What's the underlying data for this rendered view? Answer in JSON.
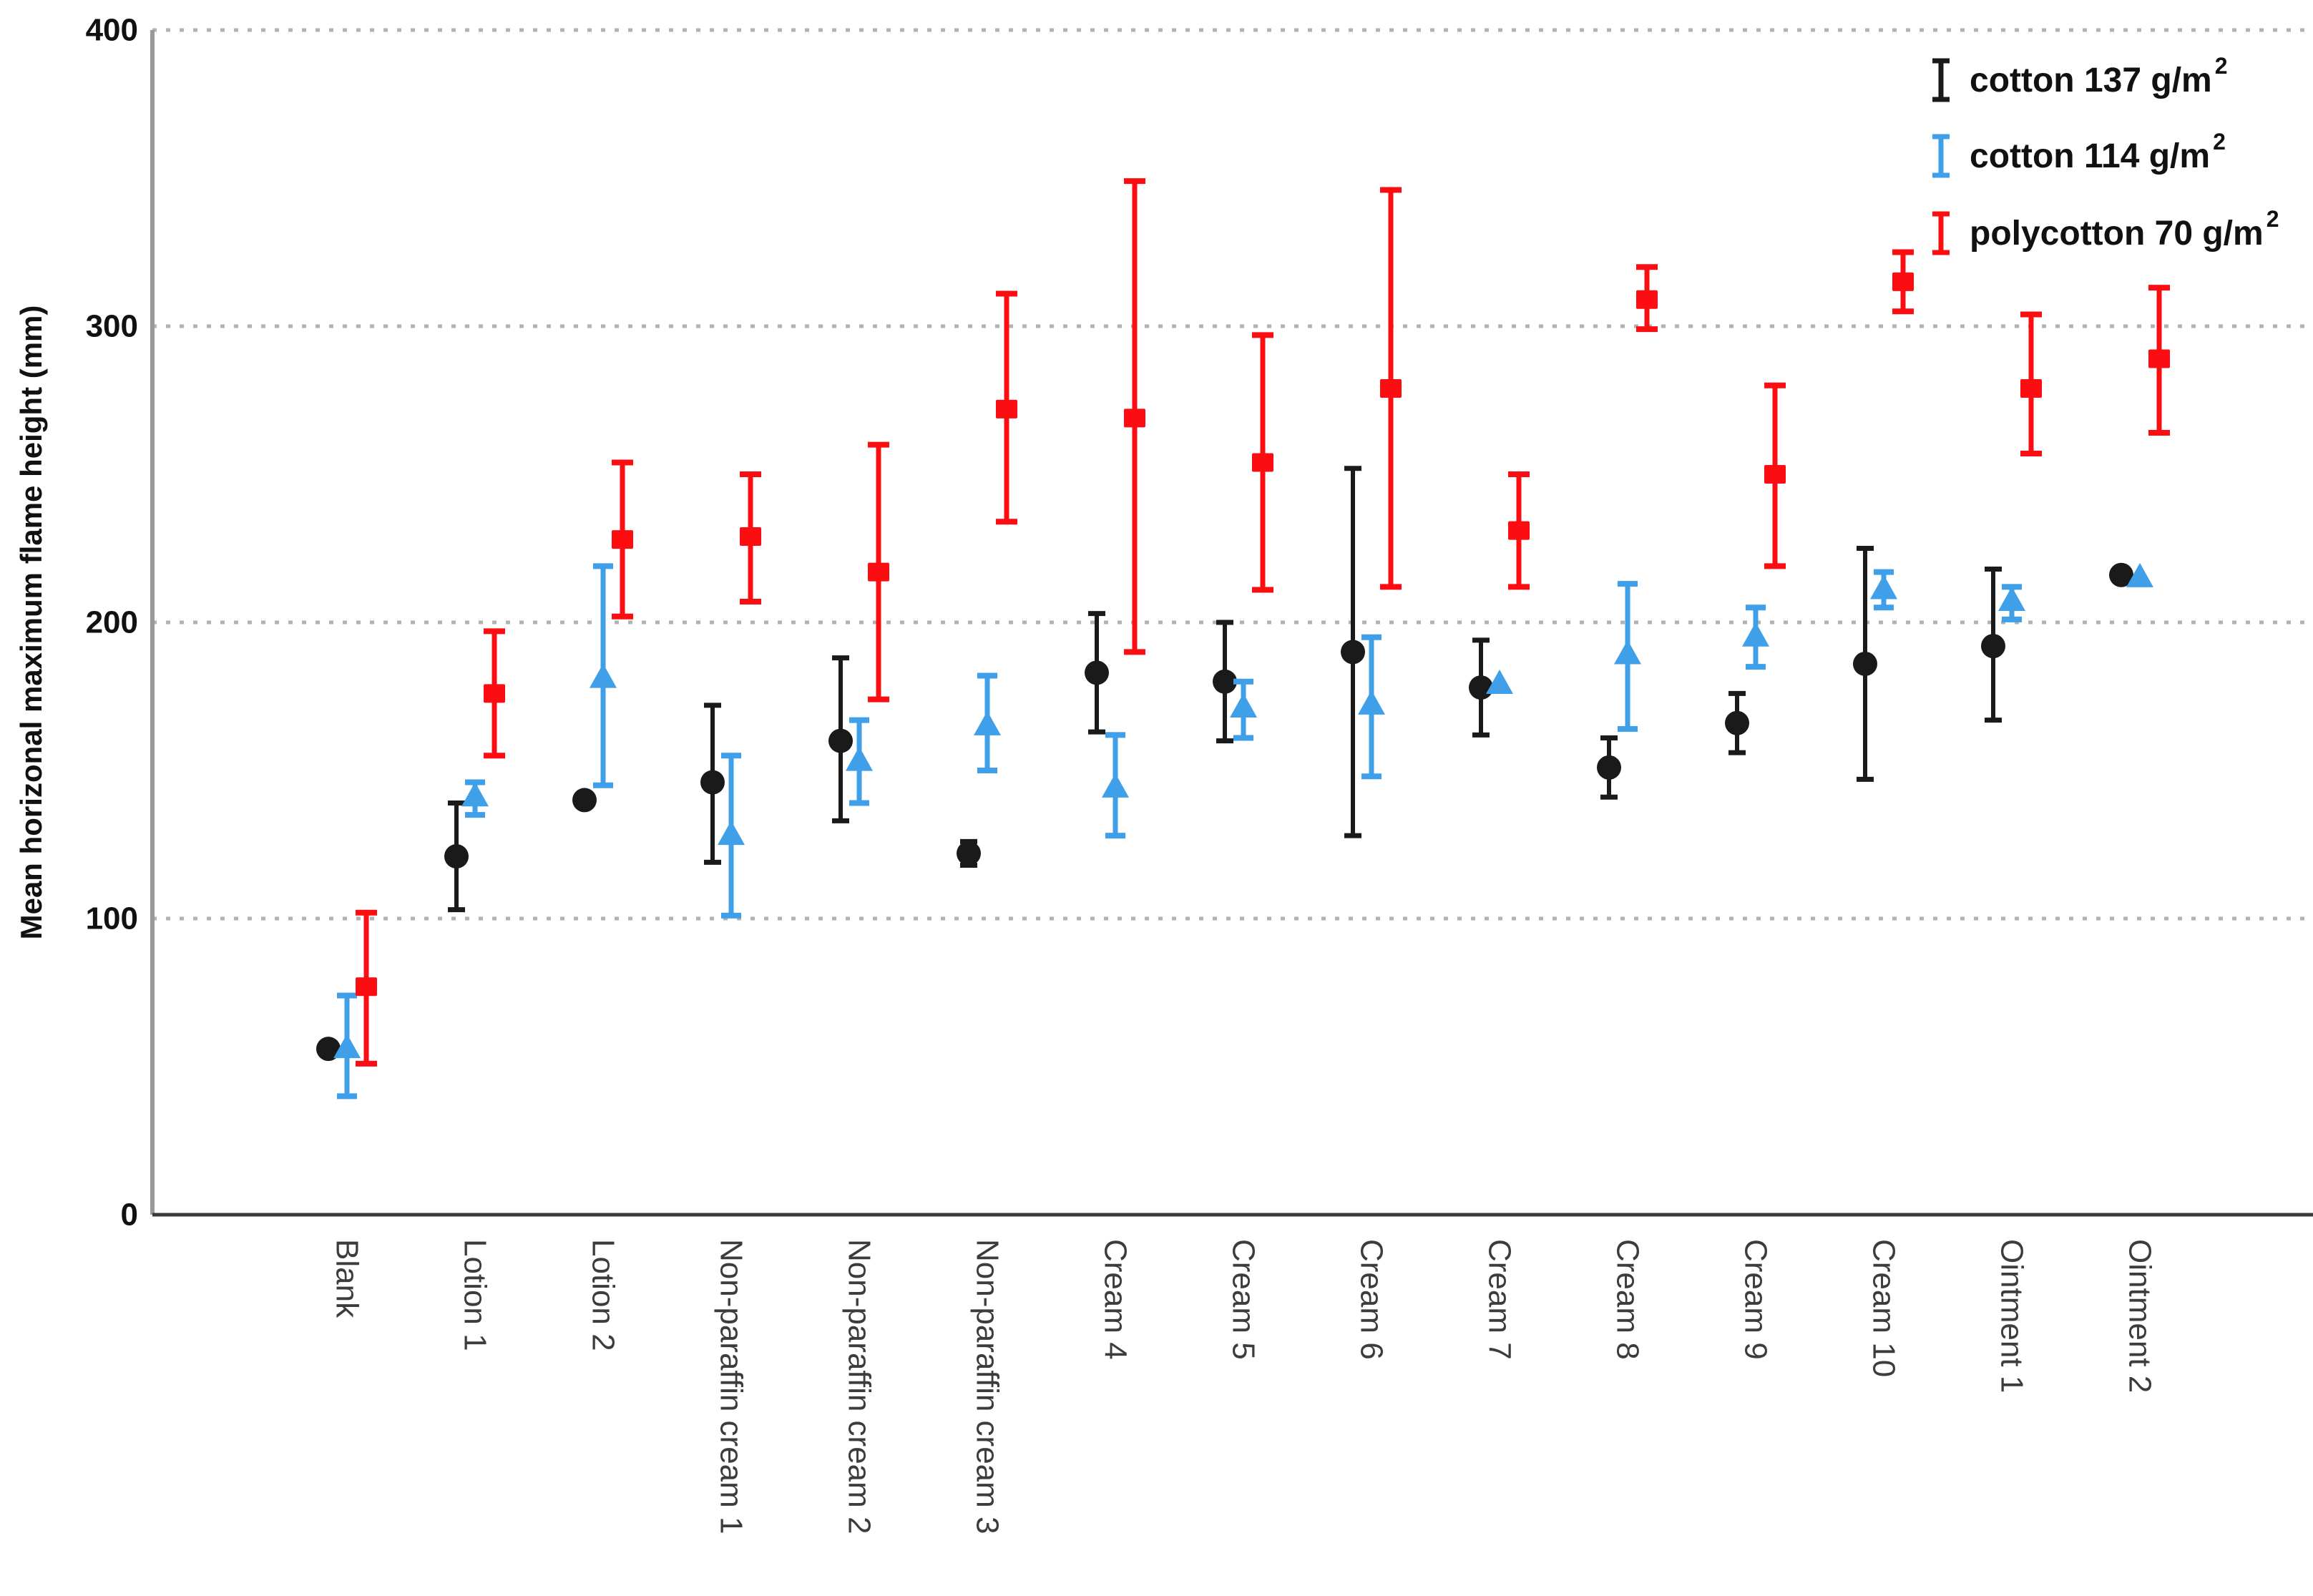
{
  "page": {
    "background": "#ffffff"
  },
  "chart_data": {
    "type": "scatter",
    "title": "",
    "xlabel": "",
    "ylabel": "Mean horizonal maximum flame height (mm)",
    "ylim": [
      0,
      400
    ],
    "yticks": [
      0,
      100,
      200,
      300,
      400
    ],
    "grid": "horizontal-dashed",
    "grid_color": "#b2b2b2",
    "legend_position": "top-right",
    "error_bars": true,
    "categories": [
      "Blank",
      "Lotion 1",
      "Lotion 2",
      "Non-paraffin cream 1",
      "Non-paraffin cream 2",
      "Non-paraffin cream 3",
      "Cream 4",
      "Cream 5",
      "Cream 6",
      "Cream 7",
      "Cream 8",
      "Cream 9",
      "Cream 10",
      "Ointment 1",
      "Ointment 2"
    ],
    "series": [
      {
        "name": "cotton 137 g/m",
        "name_sup": "2",
        "marker": "circle",
        "color": "#1a1a1a",
        "points": [
          {
            "mean": 56,
            "lo": null,
            "hi": null
          },
          {
            "mean": 121,
            "lo": 103,
            "hi": 139
          },
          {
            "mean": 140,
            "lo": null,
            "hi": null
          },
          {
            "mean": 146,
            "lo": 119,
            "hi": 172
          },
          {
            "mean": 160,
            "lo": 133,
            "hi": 188
          },
          {
            "mean": 122,
            "lo": 118,
            "hi": 126
          },
          {
            "mean": 183,
            "lo": 163,
            "hi": 203
          },
          {
            "mean": 180,
            "lo": 160,
            "hi": 200
          },
          {
            "mean": 190,
            "lo": 128,
            "hi": 252
          },
          {
            "mean": 178,
            "lo": 162,
            "hi": 194
          },
          {
            "mean": 151,
            "lo": 141,
            "hi": 161
          },
          {
            "mean": 166,
            "lo": 156,
            "hi": 176
          },
          {
            "mean": 186,
            "lo": 147,
            "hi": 225
          },
          {
            "mean": 192,
            "lo": 167,
            "hi": 218
          },
          {
            "mean": 216,
            "lo": null,
            "hi": null
          }
        ]
      },
      {
        "name": "cotton 114 g/m",
        "name_sup": "2",
        "marker": "triangle",
        "color": "#3f9fe8",
        "points": [
          {
            "mean": 56,
            "lo": 40,
            "hi": 74
          },
          {
            "mean": 141,
            "lo": 135,
            "hi": 146
          },
          {
            "mean": 181,
            "lo": 145,
            "hi": 219
          },
          {
            "mean": 128,
            "lo": 101,
            "hi": 155
          },
          {
            "mean": 153,
            "lo": 139,
            "hi": 167
          },
          {
            "mean": 165,
            "lo": 150,
            "hi": 182
          },
          {
            "mean": 144,
            "lo": 128,
            "hi": 162
          },
          {
            "mean": 171,
            "lo": 161,
            "hi": 180
          },
          {
            "mean": 172,
            "lo": 148,
            "hi": 195
          },
          {
            "mean": 179,
            "lo": null,
            "hi": null
          },
          {
            "mean": 189,
            "lo": 164,
            "hi": 213
          },
          {
            "mean": 195,
            "lo": 185,
            "hi": 205
          },
          {
            "mean": 211,
            "lo": 205,
            "hi": 217
          },
          {
            "mean": 207,
            "lo": 201,
            "hi": 212
          },
          {
            "mean": 215,
            "lo": null,
            "hi": null
          }
        ]
      },
      {
        "name": "polycotton 70 g/m",
        "name_sup": "2",
        "marker": "square",
        "color": "#fb0d12",
        "points": [
          {
            "mean": 77,
            "lo": 51,
            "hi": 102
          },
          {
            "mean": 176,
            "lo": 155,
            "hi": 197
          },
          {
            "mean": 228,
            "lo": 202,
            "hi": 254
          },
          {
            "mean": 229,
            "lo": 207,
            "hi": 250
          },
          {
            "mean": 217,
            "lo": 174,
            "hi": 260
          },
          {
            "mean": 272,
            "lo": 234,
            "hi": 311
          },
          {
            "mean": 269,
            "lo": 190,
            "hi": 349
          },
          {
            "mean": 254,
            "lo": 211,
            "hi": 297
          },
          {
            "mean": 279,
            "lo": 212,
            "hi": 346
          },
          {
            "mean": 231,
            "lo": 212,
            "hi": 250
          },
          {
            "mean": 309,
            "lo": 299,
            "hi": 320
          },
          {
            "mean": 250,
            "lo": 219,
            "hi": 280
          },
          {
            "mean": 315,
            "lo": 305,
            "hi": 325
          },
          {
            "mean": 279,
            "lo": 257,
            "hi": 304
          },
          {
            "mean": 289,
            "lo": 264,
            "hi": 313
          }
        ]
      }
    ]
  }
}
